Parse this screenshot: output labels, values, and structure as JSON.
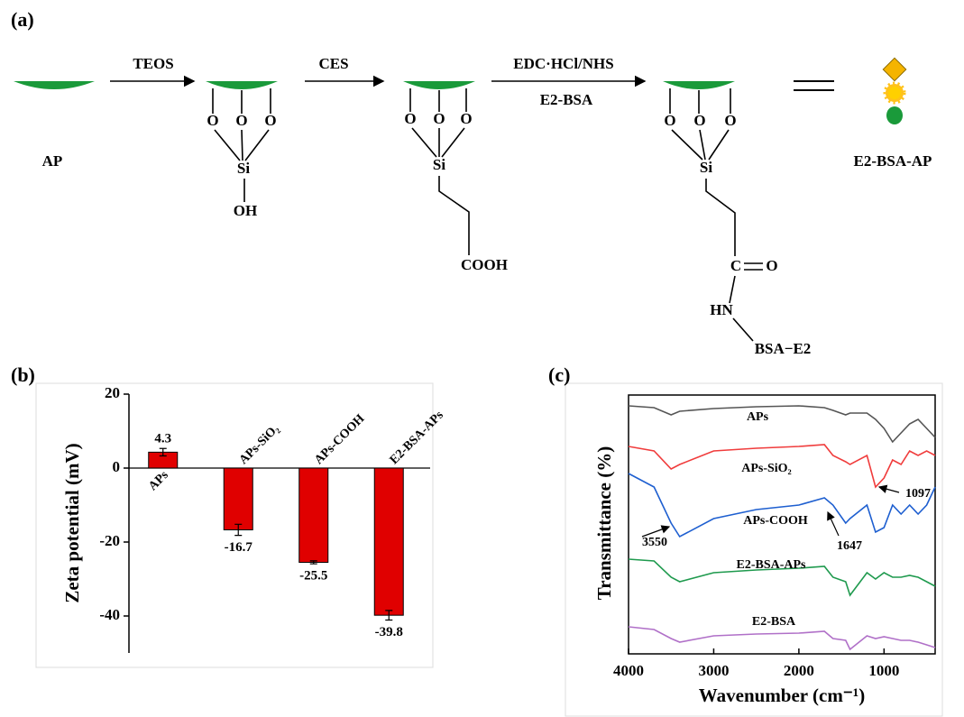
{
  "figure": {
    "panels": [
      "(a)",
      "(b)",
      "(c)"
    ]
  },
  "scheme": {
    "reagents": [
      "TEOS",
      "CES",
      "EDC·HCl/NHS",
      "E2-BSA"
    ],
    "products": [
      "AP",
      "E2-BSA-AP"
    ],
    "structures": [
      {
        "atoms": [
          "O",
          "O",
          "O",
          "Si",
          "OH"
        ]
      },
      {
        "atoms": [
          "O",
          "O",
          "O",
          "Si",
          "COOH"
        ]
      },
      {
        "atoms": [
          "O",
          "O",
          "O",
          "Si",
          "C",
          "O",
          "HN",
          "BSA−E2"
        ]
      }
    ]
  },
  "chart_data": [
    {
      "type": "bar",
      "ylabel": "Zeta potential (mV)",
      "categories": [
        "APs",
        "APs-SiO₂",
        "APs-COOH",
        "E2-BSA-APs"
      ],
      "values": [
        4.3,
        -16.7,
        -25.5,
        -39.8
      ],
      "errors": [
        1.0,
        1.5,
        0.4,
        1.3
      ],
      "color": "#e00000",
      "ylim": [
        -50,
        20
      ],
      "yticks": [
        -40,
        -20,
        0,
        20
      ]
    },
    {
      "type": "line",
      "xlabel": "Wavenumber (cm⁻¹)",
      "ylabel": "Transmittance (%)",
      "x": [
        4000,
        3700,
        3500,
        3400,
        3000,
        2500,
        2000,
        1700,
        1600,
        1450,
        1400,
        1200,
        1100,
        1000,
        900,
        800,
        700,
        600,
        500,
        400
      ],
      "xlim": [
        4000,
        400
      ],
      "xticks": [
        4000,
        3000,
        2000,
        1000
      ],
      "ylim": [
        0,
        287
      ],
      "series": [
        {
          "name": "APs",
          "color": "#555555",
          "values": [
            275,
            273,
            265,
            269,
            272,
            274,
            275,
            273,
            270,
            265,
            267,
            267,
            260,
            250,
            235,
            245,
            255,
            260,
            250,
            240
          ]
        },
        {
          "name": "APs-SiO₂",
          "color": "#f03c3c",
          "values": [
            230,
            225,
            205,
            210,
            225,
            228,
            230,
            232,
            220,
            213,
            210,
            220,
            185,
            195,
            215,
            210,
            225,
            220,
            225,
            220
          ]
        },
        {
          "name": "APs-COOH",
          "color": "#1e5fd0",
          "values": [
            200,
            185,
            145,
            130,
            150,
            160,
            165,
            173,
            165,
            145,
            150,
            165,
            135,
            140,
            165,
            155,
            165,
            155,
            165,
            185
          ]
        },
        {
          "name": "E2-BSA-APs",
          "color": "#1f9a4e",
          "values": [
            105,
            103,
            85,
            80,
            90,
            93,
            95,
            97,
            85,
            80,
            65,
            90,
            83,
            90,
            85,
            85,
            87,
            85,
            80,
            75
          ]
        },
        {
          "name": "E2-BSA",
          "color": "#b070c8",
          "values": [
            30,
            27,
            17,
            13,
            20,
            22,
            23,
            25,
            17,
            15,
            5,
            20,
            17,
            19,
            17,
            15,
            15,
            13,
            10,
            7
          ]
        }
      ],
      "annotations": [
        "3550",
        "1647",
        "1097"
      ]
    }
  ]
}
